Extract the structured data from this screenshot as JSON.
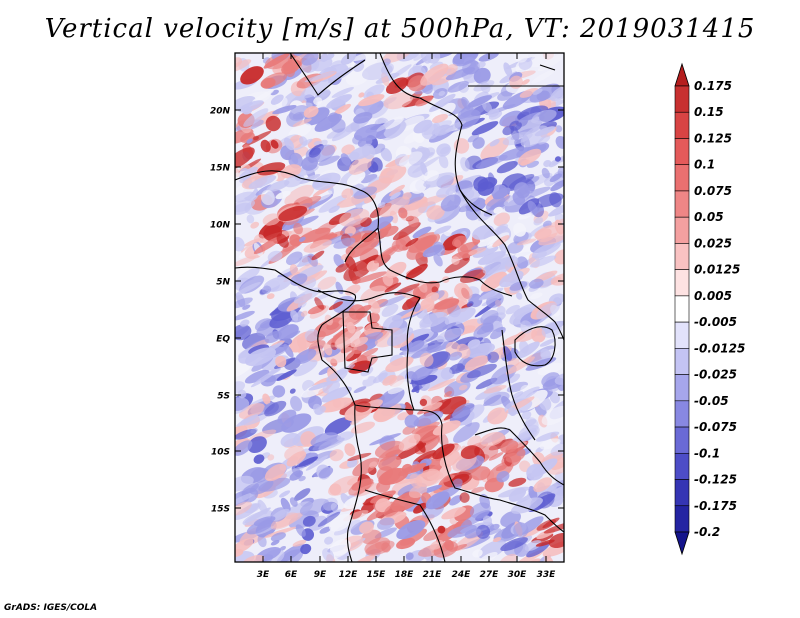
{
  "title": "Vertical velocity [m/s] at 500hPa, VT: 2019031415",
  "footer": "GrADS: IGES/COLA",
  "map": {
    "lat_labels": [
      "20N",
      "15N",
      "10N",
      "5N",
      "EQ",
      "5S",
      "10S",
      "15S"
    ],
    "lon_labels": [
      "3E",
      "6E",
      "9E",
      "12E",
      "15E",
      "18E",
      "21E",
      "24E",
      "27E",
      "30E",
      "33E"
    ]
  },
  "colorbar": {
    "labels": [
      "0.175",
      "0.15",
      "0.125",
      "0.1",
      "0.075",
      "0.05",
      "0.025",
      "0.0125",
      "0.005",
      "-0.005",
      "-0.0125",
      "-0.025",
      "-0.05",
      "-0.075",
      "-0.1",
      "-0.125",
      "-0.175",
      "-0.2"
    ],
    "colors": [
      "#b51e1e",
      "#c83030",
      "#d84444",
      "#e45a5a",
      "#ea7070",
      "#ef8686",
      "#f4a0a0",
      "#f9c2c2",
      "#fde2e2",
      "#ffffff",
      "#e2e2fb",
      "#c4c4f4",
      "#a6a6ec",
      "#8888e2",
      "#6a6ad6",
      "#4d4dc7",
      "#3535b4",
      "#2424a2",
      "#14148c"
    ]
  },
  "field_colors": {
    "red_strong": "#c82828",
    "red": "#e87a7a",
    "red_light": "#f6bcbc",
    "blue_light": "#c6c6f2",
    "blue": "#9a9ae6",
    "blue_strong": "#5c5cd0",
    "neutral": "#f3f3fb"
  }
}
